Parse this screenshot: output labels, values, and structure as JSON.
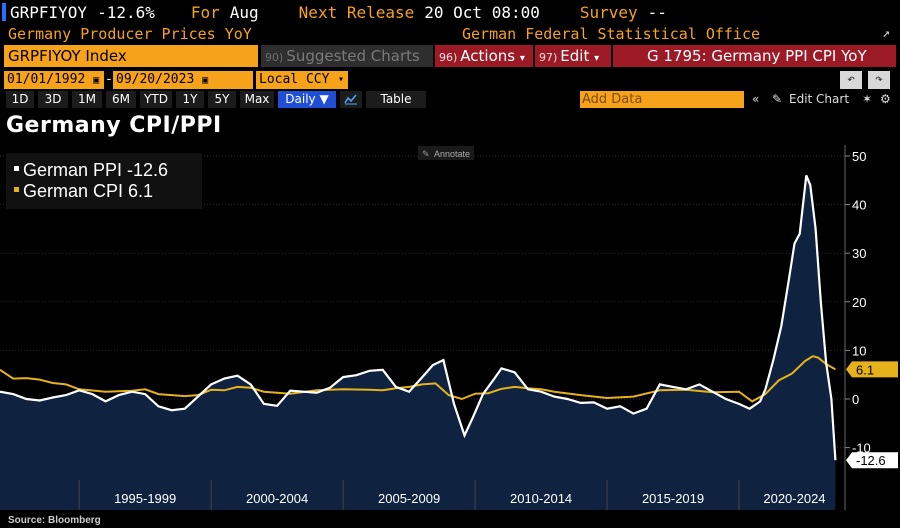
{
  "header": {
    "ticker": "GRPFIYOY",
    "change": "-12.6%",
    "for_label": "For",
    "for_value": "Aug",
    "next_label": "Next Release",
    "next_value": "20 Oct 08:00",
    "survey_label": "Survey",
    "survey_value": "--",
    "description": "Germany Producer Prices YoY",
    "source_org": "German Federal Statistical Office"
  },
  "toolbar": {
    "index_label": "GRPFIYOY Index",
    "suggested_num": "90)",
    "suggested_label": "Suggested Charts",
    "actions_num": "96)",
    "actions_label": "Actions",
    "edit_num": "97)",
    "edit_label": "Edit",
    "graph_title": "G 1795: Germany PPI CPI YoY"
  },
  "range": {
    "start_date": "01/01/1992",
    "end_date": "09/20/2023",
    "currency": "Local CCY"
  },
  "periods": [
    "1D",
    "3D",
    "1M",
    "6M",
    "YTD",
    "1Y",
    "5Y",
    "Max"
  ],
  "frequency": "Daily",
  "table_label": "Table",
  "add_data_placeholder": "Add Data",
  "edit_chart_label": "Edit Chart",
  "chart_title": "Germany CPI/PPI",
  "annotate_label": "Annotate",
  "source_text": "Source: Bloomberg",
  "colors": {
    "ppi": "#ffffff",
    "cpi": "#e5b21b",
    "fill": "#0f2340",
    "accent": "#f7a21b",
    "red": "#9b1a25"
  },
  "chart_data": {
    "type": "line",
    "title": "Germany CPI/PPI",
    "xlabel": "",
    "ylabel": "",
    "x_tick_labels": [
      "1995-1999",
      "2000-2004",
      "2005-2009",
      "2010-2014",
      "2015-2019",
      "2020-2024"
    ],
    "y_ticks": [
      -10,
      0,
      10,
      20,
      30,
      40,
      50
    ],
    "ylim": [
      -13,
      51
    ],
    "xlim": [
      1992.0,
      2023.75
    ],
    "legend_position": "top-left",
    "series": [
      {
        "name": "German PPI",
        "legend": "German PPI -12.6",
        "last_value": "-12.6",
        "x": [
          1992.0,
          1992.5,
          1993.0,
          1993.5,
          1994.0,
          1994.5,
          1995.0,
          1995.5,
          1996.0,
          1996.5,
          1997.0,
          1997.5,
          1998.0,
          1998.5,
          1999.0,
          1999.5,
          2000.0,
          2000.5,
          2001.0,
          2001.5,
          2002.0,
          2002.5,
          2003.0,
          2003.5,
          2004.0,
          2004.5,
          2005.0,
          2005.5,
          2006.0,
          2006.5,
          2007.0,
          2007.5,
          2008.0,
          2008.4,
          2008.8,
          2009.2,
          2009.6,
          2009.9,
          2010.3,
          2010.7,
          2011.0,
          2011.5,
          2012.0,
          2012.5,
          2013.0,
          2013.5,
          2014.0,
          2014.5,
          2015.0,
          2015.5,
          2016.0,
          2016.5,
          2017.0,
          2017.5,
          2018.0,
          2018.5,
          2019.0,
          2019.5,
          2020.0,
          2020.4,
          2020.8,
          2021.0,
          2021.3,
          2021.6,
          2021.9,
          2022.1,
          2022.3,
          2022.55,
          2022.7,
          2022.9,
          2023.1,
          2023.3,
          2023.5,
          2023.65
        ],
        "values": [
          1.5,
          1.0,
          0.0,
          -0.3,
          0.3,
          0.8,
          1.8,
          1.0,
          -0.5,
          0.8,
          1.5,
          1.0,
          -1.5,
          -2.3,
          -2.0,
          0.5,
          3.0,
          4.2,
          4.8,
          3.0,
          -1.0,
          -1.4,
          1.7,
          1.5,
          1.3,
          2.3,
          4.5,
          4.9,
          5.8,
          6.0,
          2.5,
          1.5,
          4.5,
          7.0,
          8.0,
          -1.0,
          -7.5,
          -4.0,
          1.0,
          4.0,
          6.3,
          5.5,
          2.0,
          1.5,
          0.5,
          0.0,
          -0.8,
          -0.7,
          -2.0,
          -1.5,
          -3.0,
          -2.0,
          3.0,
          2.5,
          2.0,
          3.0,
          1.5,
          0.0,
          -1.0,
          -2.0,
          -0.5,
          2.0,
          8.0,
          15.0,
          25.0,
          32.0,
          34.0,
          46.0,
          44.0,
          35.0,
          20.0,
          7.5,
          0.0,
          -12.6
        ]
      },
      {
        "name": "German CPI",
        "legend": "German CPI 6.1",
        "last_value": "6.1",
        "x": [
          1992.0,
          1992.5,
          1993.0,
          1993.5,
          1994.0,
          1994.5,
          1995.0,
          1996.0,
          1997.0,
          1997.5,
          1998.0,
          1999.0,
          1999.5,
          2000.0,
          2000.5,
          2001.0,
          2001.5,
          2002.0,
          2003.0,
          2004.0,
          2005.0,
          2006.0,
          2006.5,
          2007.0,
          2007.5,
          2008.0,
          2008.5,
          2009.0,
          2009.5,
          2010.0,
          2010.5,
          2011.0,
          2011.5,
          2012.0,
          2012.5,
          2013.0,
          2014.0,
          2015.0,
          2016.0,
          2017.0,
          2018.0,
          2019.0,
          2020.0,
          2020.5,
          2021.0,
          2021.5,
          2022.0,
          2022.5,
          2022.8,
          2023.0,
          2023.3,
          2023.65
        ],
        "values": [
          6.0,
          4.2,
          4.3,
          4.0,
          3.3,
          3.0,
          2.0,
          1.5,
          1.7,
          2.0,
          1.0,
          0.6,
          0.8,
          1.9,
          1.8,
          2.5,
          2.3,
          1.5,
          1.1,
          1.8,
          2.0,
          1.9,
          1.8,
          2.2,
          2.5,
          3.0,
          3.2,
          0.8,
          0.0,
          1.1,
          1.2,
          2.1,
          2.5,
          2.2,
          2.0,
          1.5,
          0.8,
          0.2,
          0.5,
          1.8,
          1.9,
          1.4,
          1.5,
          -0.5,
          1.0,
          3.8,
          5.2,
          7.8,
          8.8,
          8.5,
          7.2,
          6.1
        ]
      }
    ]
  }
}
